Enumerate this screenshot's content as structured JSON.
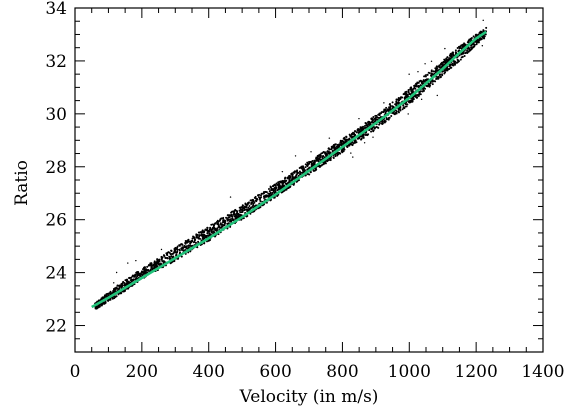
{
  "chart_data": {
    "type": "scatter",
    "xlabel": "Velocity (in m/s)",
    "ylabel": "Ratio",
    "xlim": [
      0,
      1400
    ],
    "ylim": [
      21,
      34
    ],
    "x_ticks": [
      0,
      200,
      400,
      600,
      800,
      1000,
      1200,
      1400
    ],
    "y_ticks": [
      22,
      24,
      26,
      28,
      30,
      32,
      34
    ],
    "x_minor_step": 50,
    "y_minor_step": 0.5,
    "grid": false,
    "legend": "none",
    "series": [
      {
        "kind": "scatter-band",
        "color": "#000000",
        "x": [
          60,
          120,
          200,
          300,
          400,
          500,
          600,
          700,
          800,
          900,
          1000,
          1100,
          1150,
          1200,
          1230
        ],
        "y_upper": [
          22.85,
          23.45,
          24.15,
          24.95,
          25.75,
          26.55,
          27.35,
          28.2,
          29.05,
          29.95,
          30.95,
          32.0,
          32.55,
          33.0,
          33.25
        ],
        "y_lower": [
          22.6,
          23.05,
          23.75,
          24.45,
          25.2,
          26.0,
          26.85,
          27.7,
          28.55,
          29.4,
          30.35,
          31.45,
          32.0,
          32.6,
          32.9
        ]
      },
      {
        "kind": "fit-line",
        "color": "#22c27a",
        "x": [
          50,
          100,
          200,
          300,
          400,
          500,
          600,
          700,
          800,
          900,
          1000,
          1100,
          1150,
          1200,
          1230
        ],
        "y": [
          22.7,
          23.05,
          23.8,
          24.55,
          25.3,
          26.1,
          26.95,
          27.85,
          28.75,
          29.65,
          30.6,
          31.7,
          32.3,
          32.85,
          33.1
        ]
      }
    ]
  }
}
